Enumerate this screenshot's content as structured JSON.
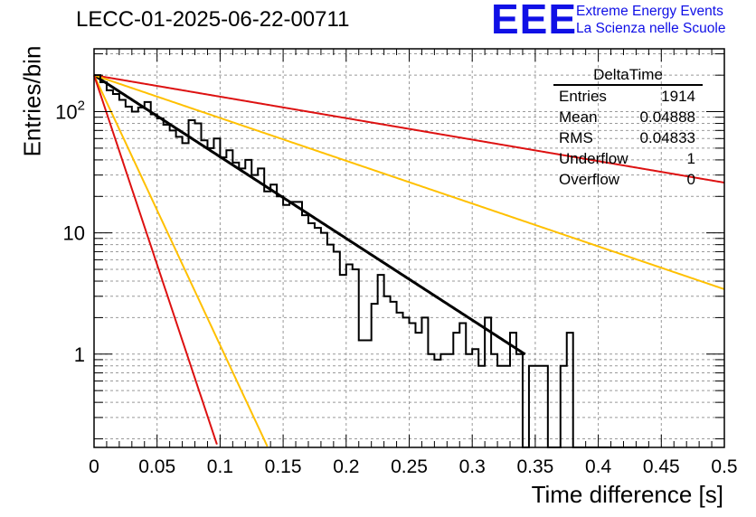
{
  "title": "LECC-01-2025-06-22-00711",
  "logo": {
    "mark": "EEE",
    "line1": "Extreme Energy Events",
    "line2": "La Scienza nelle Scuole"
  },
  "stats_box": {
    "title": "DeltaTime",
    "rows": [
      {
        "label": "Entries",
        "value": "1914"
      },
      {
        "label": "Mean",
        "value": "0.04888"
      },
      {
        "label": "RMS",
        "value": "0.04833"
      },
      {
        "label": "Underflow",
        "value": "1"
      },
      {
        "label": "Overflow",
        "value": "0"
      }
    ]
  },
  "chart_data": {
    "type": "histogram",
    "title": "LECC-01-2025-06-22-00711",
    "xlabel": "Time difference [s]",
    "ylabel": "Entries/bin",
    "xlim": [
      0,
      0.5
    ],
    "ylim": [
      0.17,
      330
    ],
    "yscale": "log",
    "grid": true,
    "legend": "top-right",
    "x_ticks": [
      "0",
      "0.05",
      "0.1",
      "0.15",
      "0.2",
      "0.25",
      "0.3",
      "0.35",
      "0.4",
      "0.45",
      "0.5"
    ],
    "y_ticks": [
      {
        "value": 1,
        "label": "1"
      },
      {
        "value": 10,
        "label": "10"
      },
      {
        "value": 100,
        "label": "10^2"
      }
    ],
    "bin_width": 0.005,
    "histogram": {
      "color": "#000000",
      "values": [
        200,
        175,
        150,
        140,
        125,
        110,
        100,
        108,
        120,
        95,
        88,
        78,
        70,
        62,
        55,
        85,
        80,
        58,
        50,
        60,
        42,
        48,
        38,
        34,
        40,
        30,
        34,
        22,
        25,
        20,
        17,
        18,
        18,
        14,
        12,
        11,
        10,
        8,
        7,
        4.5,
        5.5,
        5,
        1.3,
        1.3,
        2.6,
        4.5,
        3,
        2.7,
        2.2,
        2,
        1.8,
        1.5,
        2,
        1,
        0.9,
        1,
        1,
        1.5,
        1.8,
        1,
        1.1,
        0.8,
        2,
        1,
        0.8,
        0.8,
        1.5,
        1,
        0,
        0.8,
        0.8,
        0.8,
        0,
        0,
        0.8,
        1.5,
        0,
        0,
        0,
        0,
        0,
        0,
        0,
        0,
        0,
        0,
        0,
        0
      ]
    },
    "curves": [
      {
        "color": "#000000",
        "y0": 200,
        "tau": 0.0645,
        "xmax": 0.342
      },
      {
        "color": "#dd1111",
        "y0": 200,
        "tau": 0.245
      },
      {
        "color": "#ffc000",
        "y0": 200,
        "tau": 0.123
      },
      {
        "color": "#ffc000",
        "y0": 200,
        "tau": 0.0195
      },
      {
        "color": "#dd1111",
        "y0": 200,
        "tau": 0.0139
      }
    ]
  }
}
